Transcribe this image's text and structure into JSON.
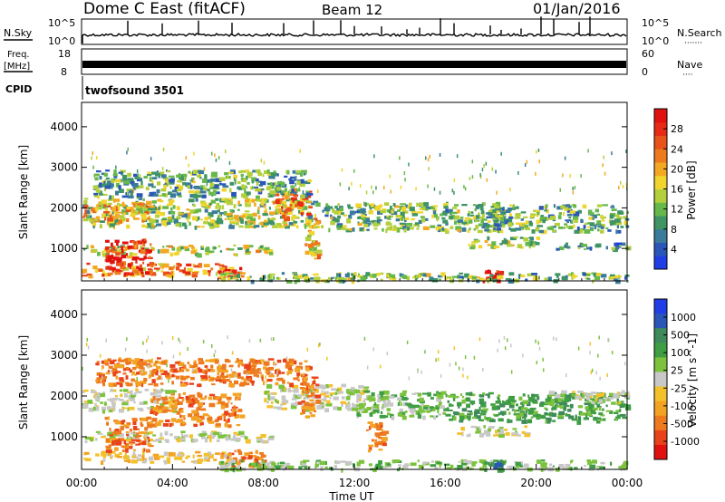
{
  "header": {
    "radar": "Dome C East (fitACF)",
    "beam": "Beam 12",
    "date": "01/Jan/2016"
  },
  "strip_panels": {
    "nsky": {
      "label": "N.Sky",
      "tick_top": "10^5",
      "tick_bottom": "10^0",
      "right_label": "N.Search",
      "right_tick_top": "10^5",
      "right_tick_bottom": "10^0",
      "right_marker": "·······"
    },
    "freq": {
      "label_line1": "Freq.",
      "label_line2": "[MHz]",
      "tick_top": "18",
      "tick_bottom": "8",
      "right_label": "Nave",
      "right_tick_top": "60",
      "right_tick_bottom": "0",
      "right_marker": "····"
    },
    "cpid": {
      "label": "CPID",
      "program": "twofsound 3501"
    }
  },
  "chart_data": [
    {
      "type": "heatmap",
      "name": "power-panel",
      "ylabel": "Slant Range [km]",
      "ylim": [
        200,
        4600
      ],
      "yticks": [
        "1000",
        "2000",
        "3000",
        "4000"
      ],
      "xlim_hours": [
        0,
        24
      ],
      "colorbar": {
        "label": "Power [dB]",
        "ticks": [
          "4",
          "8",
          "12",
          "16",
          "20",
          "24",
          "28"
        ],
        "range": [
          0,
          32
        ],
        "colors": [
          "#1f3ee6",
          "#2a56b8",
          "#3a7a9a",
          "#3f9464",
          "#66b84a",
          "#b4cf3c",
          "#efd52d",
          "#f3a823",
          "#ee7a1e",
          "#e9521b",
          "#e62a16",
          "#e01210"
        ]
      },
      "bands": [
        {
          "t0": 0.0,
          "t1": 10.3,
          "r0": 1550,
          "r1": 2250,
          "v": 14
        },
        {
          "t0": 0.0,
          "t1": 3.0,
          "r0": 1700,
          "r1": 2150,
          "v": 20
        },
        {
          "t0": 0.0,
          "t1": 8.3,
          "r0": 880,
          "r1": 1100,
          "v": 15
        },
        {
          "t0": 0.0,
          "t1": 6.5,
          "r0": 340,
          "r1": 650,
          "v": 22
        },
        {
          "t0": 1.0,
          "t1": 3.0,
          "r0": 380,
          "r1": 1250,
          "v": 28
        },
        {
          "t0": 6.0,
          "t1": 7.0,
          "r0": 280,
          "r1": 560,
          "v": 24
        },
        {
          "t0": 8.4,
          "t1": 10.0,
          "r0": 1750,
          "r1": 2500,
          "v": 22
        },
        {
          "t0": 10.5,
          "t1": 18.5,
          "r0": 1450,
          "r1": 2150,
          "v": 12
        },
        {
          "t0": 17.0,
          "t1": 20.0,
          "r0": 1050,
          "r1": 1300,
          "v": 14
        },
        {
          "t0": 18.0,
          "t1": 24.0,
          "r0": 1450,
          "r1": 2100,
          "v": 11
        },
        {
          "t0": 20.5,
          "t1": 24.0,
          "r0": 1000,
          "r1": 1150,
          "v": 9
        },
        {
          "t0": 17.6,
          "t1": 18.4,
          "r0": 220,
          "r1": 480,
          "v": 30
        },
        {
          "t0": 6.0,
          "t1": 24.0,
          "r0": 220,
          "r1": 420,
          "v": 12
        },
        {
          "t0": 9.8,
          "t1": 10.4,
          "r0": 700,
          "r1": 1800,
          "v": 20
        },
        {
          "t0": 0.5,
          "t1": 10.0,
          "r0": 2300,
          "r1": 2950,
          "v": 10
        }
      ]
    },
    {
      "type": "heatmap",
      "name": "velocity-panel",
      "ylabel": "Slant Range [km]",
      "ylim": [
        200,
        4600
      ],
      "yticks": [
        "1000",
        "2000",
        "3000",
        "4000"
      ],
      "xlabel": "Time UT",
      "xticks": [
        "00:00",
        "04:00",
        "08:00",
        "12:00",
        "16:00",
        "20:00",
        "00:00"
      ],
      "xlim_hours": [
        0,
        24
      ],
      "colorbar": {
        "label": "Velocity [m s^-1]",
        "ticks": [
          "1000",
          "500",
          "100",
          "25",
          "-25",
          "-100",
          "-500",
          "-1000"
        ],
        "colors": [
          "#1f3ee6",
          "#2a56b8",
          "#3f8a5a",
          "#3f9e44",
          "#7cc23d",
          "#c8c8c8",
          "#f3c12b",
          "#f3a323",
          "#ee7a1e",
          "#e9421b",
          "#e01210"
        ]
      },
      "bands": [
        {
          "t0": 0.0,
          "t1": 4.0,
          "r0": 1650,
          "r1": 2200,
          "c": 5
        },
        {
          "t0": 0.0,
          "t1": 8.3,
          "r0": 900,
          "r1": 1150,
          "c": 5
        },
        {
          "t0": 0.0,
          "t1": 6.5,
          "r0": 400,
          "r1": 650,
          "c": 6
        },
        {
          "t0": 1.0,
          "t1": 3.0,
          "r0": 650,
          "r1": 1500,
          "c": 8
        },
        {
          "t0": 3.0,
          "t1": 7.0,
          "r0": 1300,
          "r1": 2100,
          "c": 8
        },
        {
          "t0": 6.0,
          "t1": 8.0,
          "r0": 300,
          "r1": 700,
          "c": 8
        },
        {
          "t0": 8.0,
          "t1": 12.5,
          "r0": 1700,
          "r1": 2300,
          "c": 5
        },
        {
          "t0": 9.5,
          "t1": 10.3,
          "r0": 1500,
          "r1": 2500,
          "c": 8
        },
        {
          "t0": 12.0,
          "t1": 16.0,
          "r0": 1500,
          "r1": 2150,
          "c": 4
        },
        {
          "t0": 12.5,
          "t1": 13.3,
          "r0": 700,
          "r1": 1450,
          "c": 8
        },
        {
          "t0": 16.0,
          "t1": 24.0,
          "r0": 1400,
          "r1": 2100,
          "c": 3
        },
        {
          "t0": 20.5,
          "t1": 24.0,
          "r0": 1850,
          "r1": 2150,
          "c": 5
        },
        {
          "t0": 16.5,
          "t1": 19.5,
          "r0": 1050,
          "r1": 1300,
          "c": 5
        },
        {
          "t0": 6.0,
          "t1": 24.0,
          "r0": 220,
          "r1": 450,
          "c": 4
        },
        {
          "t0": 17.6,
          "t1": 18.4,
          "r0": 220,
          "r1": 420,
          "c": 2
        },
        {
          "t0": 0.5,
          "t1": 10.0,
          "r0": 2300,
          "r1": 2950,
          "c": 8
        }
      ]
    }
  ]
}
